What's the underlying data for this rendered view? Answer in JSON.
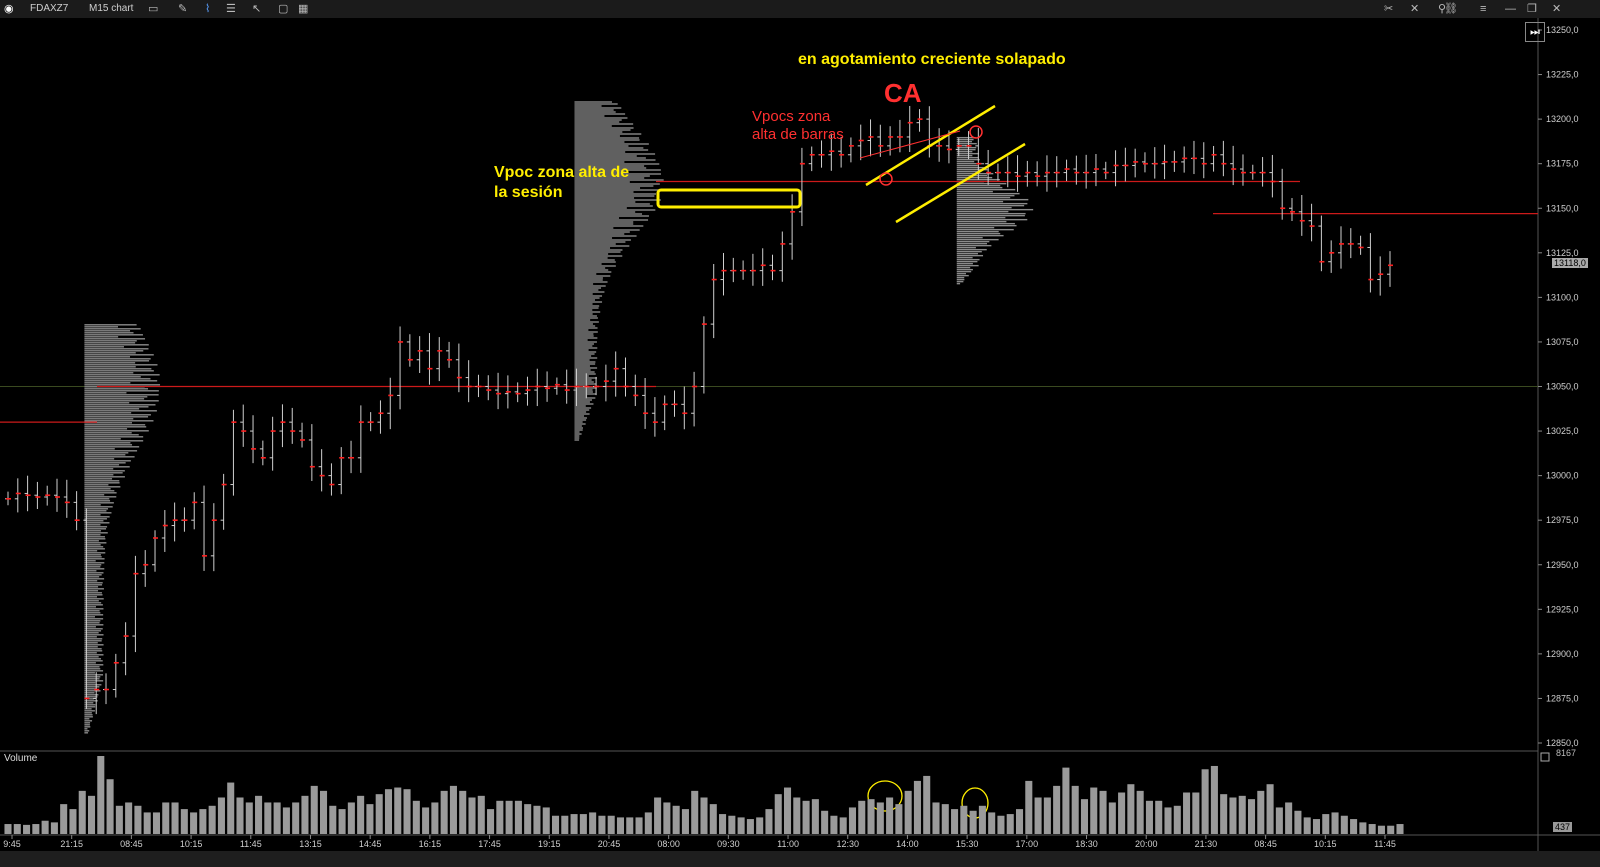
{
  "toolbar": {
    "symbol": "FDAXZ7",
    "chart_type": "M15 chart",
    "icons": [
      "logo-icon",
      "monitor-icon",
      "pencil-icon",
      "line-chart-icon",
      "bars-icon",
      "cursor-icon",
      "window-icon",
      "grid-icon"
    ],
    "window_buttons": [
      "minimize",
      "restore",
      "close"
    ]
  },
  "colors": {
    "background": "#000000",
    "candle": "#d0d0d0",
    "close_tick": "#ff2020",
    "profile": "#8a8a8a",
    "vpoc_line": "#cc1a1a",
    "annotation_yellow": "#ffee00",
    "annotation_red": "#ff3030",
    "volume_bar": "#9a9a9a"
  },
  "annotations": {
    "title_note": "en agotamiento creciente solapado",
    "ca": "CA",
    "vpocs_label_1": "Vpocs zona",
    "vpocs_label_2": "alta de barras",
    "vpoc_session_1": "Vpoc zona alta de",
    "vpoc_session_2": "la sesión"
  },
  "chart_data": {
    "type": "candlestick",
    "y_axis": {
      "ticks": [
        "13250,0",
        "13225,0",
        "13200,0",
        "13175,0",
        "13150,0",
        "13125,0",
        "13100,0",
        "13075,0",
        "13050,0",
        "13025,0",
        "13000,0",
        "12975,0",
        "12950,0",
        "12925,0",
        "12900,0",
        "12875,0",
        "12850,0"
      ],
      "range": [
        12850,
        13250
      ],
      "last_price": "13118,0"
    },
    "x_axis": {
      "ticks": [
        "9:45",
        "21:15",
        "08:45",
        "10:15",
        "11:45",
        "13:15",
        "14:45",
        "16:15",
        "17:45",
        "19:15",
        "20:45",
        "08:00",
        "09:30",
        "11:00",
        "12:30",
        "14:00",
        "15:30",
        "17:00",
        "18:30",
        "20:00",
        "21:30",
        "08:45",
        "10:15",
        "11:45"
      ]
    },
    "vpoc_levels": [
      13030,
      13050,
      13165,
      13147
    ],
    "price_path": [
      12987,
      12990,
      12989,
      12988,
      12989,
      12988,
      12985,
      12975,
      12875,
      12880,
      12880,
      12895,
      12910,
      12945,
      12950,
      12965,
      12972,
      12975,
      12975,
      12985,
      12955,
      12975,
      12995,
      13030,
      13025,
      13015,
      13010,
      13025,
      13030,
      13025,
      13020,
      13005,
      13000,
      12995,
      13010,
      13010,
      13030,
      13030,
      13035,
      13045,
      13075,
      13065,
      13070,
      13060,
      13070,
      13065,
      13055,
      13050,
      13050,
      13048,
      13046,
      13047,
      13046,
      13048,
      13050,
      13049,
      13051,
      13048,
      13050,
      13050,
      13050,
      13053,
      13060,
      13050,
      13045,
      13035,
      13030,
      13040,
      13040,
      13035,
      13050,
      13085,
      13110,
      13115,
      13115,
      13115,
      13115,
      13118,
      13115,
      13130,
      13148,
      13175,
      13180,
      13180,
      13182,
      13180,
      13185,
      13188,
      13190,
      13185,
      13190,
      13190,
      13198,
      13200,
      13185,
      13185,
      13183,
      13185,
      13185,
      13175,
      13170,
      13170,
      13170,
      13168,
      13170,
      13168,
      13170,
      13170,
      13172,
      13170,
      13170,
      13172,
      13170,
      13174,
      13174,
      13176,
      13175,
      13175,
      13176,
      13176,
      13178,
      13178,
      13175,
      13180,
      13175,
      13172,
      13170,
      13170,
      13170,
      13165,
      13150,
      13148,
      13143,
      13140,
      13120,
      13125,
      13130,
      13130,
      13128,
      13110,
      13113,
      13118
    ],
    "session_starts": [
      8,
      58,
      97
    ],
    "profiles": [
      {
        "start_index": 8,
        "range": [
          12855,
          13085
        ],
        "poc": 13050
      },
      {
        "start_index": 58,
        "range": [
          13020,
          13210
        ],
        "poc": 13165
      },
      {
        "start_index": 97,
        "range": [
          13107,
          13190
        ],
        "poc": 13150
      }
    ],
    "volume": {
      "label": "Volume",
      "max": "8167",
      "last": "437",
      "values": [
        60,
        60,
        55,
        60,
        80,
        70,
        180,
        150,
        260,
        230,
        470,
        330,
        170,
        190,
        170,
        130,
        130,
        190,
        190,
        150,
        130,
        150,
        170,
        220,
        310,
        220,
        190,
        230,
        190,
        190,
        160,
        190,
        230,
        290,
        260,
        170,
        150,
        190,
        230,
        180,
        240,
        270,
        280,
        270,
        200,
        160,
        190,
        260,
        290,
        260,
        220,
        230,
        150,
        200,
        200,
        200,
        180,
        170,
        160,
        110,
        110,
        120,
        120,
        130,
        110,
        110,
        100,
        100,
        100,
        130,
        220,
        190,
        170,
        150,
        260,
        220,
        180,
        120,
        110,
        100,
        90,
        100,
        150,
        240,
        280,
        220,
        200,
        210,
        140,
        110,
        100,
        160,
        200,
        210,
        190,
        220,
        180,
        260,
        320,
        350,
        190,
        180,
        150,
        170,
        140,
        170,
        130,
        110,
        120,
        150,
        320,
        220,
        220,
        290,
        400,
        290,
        210,
        280,
        260,
        190,
        250,
        300,
        260,
        200,
        200,
        160,
        170,
        250,
        250,
        390,
        410,
        240,
        220,
        230,
        210,
        260,
        300,
        160,
        190,
        140,
        100,
        90,
        120,
        130,
        110,
        90,
        70,
        60,
        50,
        50,
        60
      ]
    }
  }
}
